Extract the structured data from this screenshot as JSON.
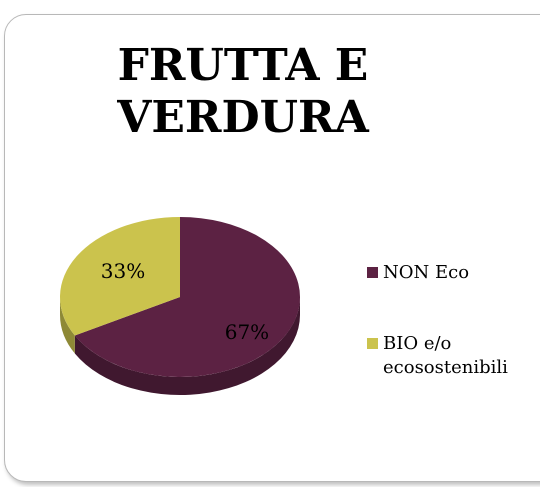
{
  "chart_data": {
    "type": "pie",
    "title": "FRUTTA E VERDURA",
    "categories": [
      "NON Eco",
      "BIO e/o ecosostenibili"
    ],
    "values": [
      67,
      33
    ],
    "value_labels": [
      "67%",
      "33%"
    ],
    "colors": [
      "#5c2243",
      "#cbc34d"
    ],
    "legend": "right"
  }
}
